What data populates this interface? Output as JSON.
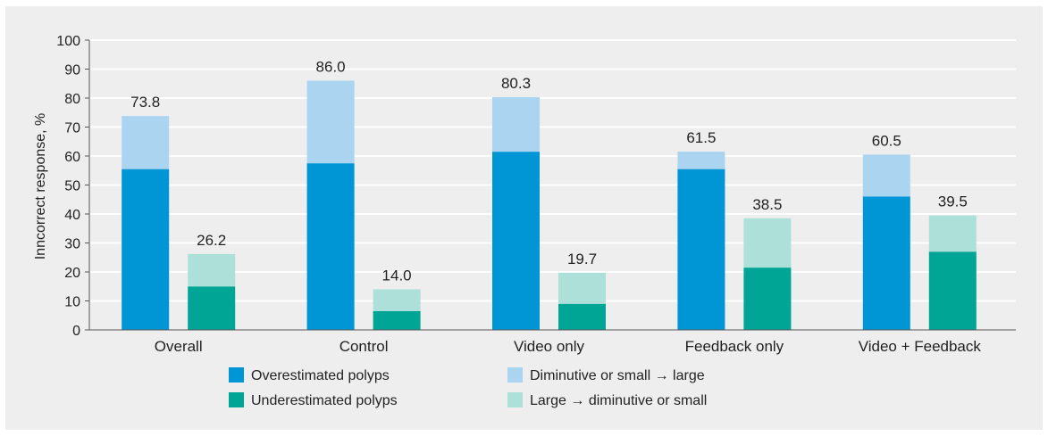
{
  "chart_data": {
    "type": "bar",
    "stacked": true,
    "grouped": true,
    "title": "",
    "xlabel": "",
    "ylabel": "Inncorrect response, %",
    "ylim": [
      0,
      100
    ],
    "yticks": [
      0,
      10,
      20,
      30,
      40,
      50,
      60,
      70,
      80,
      90,
      100
    ],
    "grid": true,
    "legend_position": "bottom",
    "categories": [
      "Overall",
      "Control",
      "Video only",
      "Feedback only",
      "Video + Feedback"
    ],
    "groups": [
      {
        "name": "Overestimated",
        "total_labels": [
          "73.8",
          "86.0",
          "80.3",
          "61.5",
          "60.5"
        ],
        "series": [
          {
            "name": "Overestimated polyps",
            "color": "#0096d6",
            "values": [
              55.5,
              57.5,
              61.5,
              55.5,
              46
            ]
          },
          {
            "name": "Diminutive or small → large",
            "color": "#abd4f0",
            "values": [
              18.3,
              28.5,
              18.8,
              6,
              14.5
            ]
          }
        ]
      },
      {
        "name": "Underestimated",
        "total_labels": [
          "26.2",
          "14.0",
          "19.7",
          "38.5",
          "39.5"
        ],
        "series": [
          {
            "name": "Underestimated polyps",
            "color": "#00a595",
            "values": [
              15,
              6.5,
              9,
              21.5,
              27
            ]
          },
          {
            "name": "Large → diminutive or small",
            "color": "#ade0d9",
            "values": [
              11.2,
              7.5,
              10.7,
              17,
              12.5
            ]
          }
        ]
      }
    ],
    "legend": [
      {
        "label": "Overestimated polyps",
        "color": "#0096d6"
      },
      {
        "label": "Diminutive or small → large",
        "color": "#abd4f0"
      },
      {
        "label": "Underestimated polyps",
        "color": "#00a595"
      },
      {
        "label": "Large → diminutive or small",
        "color": "#ade0d9"
      }
    ],
    "axis_color": "#555555",
    "grid_color": "#ffffff"
  }
}
